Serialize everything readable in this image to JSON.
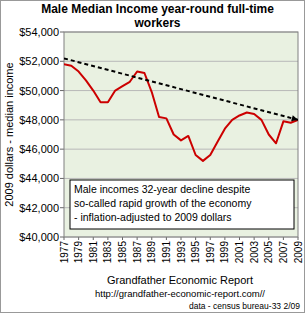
{
  "chart_data": {
    "type": "line",
    "title": "Male Median Income year-round full-time workers",
    "y_label": "2009 dollars - median income",
    "x": [
      1977,
      1978,
      1979,
      1980,
      1981,
      1982,
      1983,
      1984,
      1985,
      1986,
      1987,
      1988,
      1989,
      1990,
      1991,
      1992,
      1993,
      1994,
      1995,
      1996,
      1997,
      1998,
      1999,
      2000,
      2001,
      2002,
      2003,
      2004,
      2005,
      2006,
      2007,
      2008,
      2009
    ],
    "series": [
      {
        "color": "#cc0000",
        "values": [
          51800,
          51700,
          51300,
          50700,
          50000,
          49200,
          49200,
          50000,
          50300,
          50600,
          51300,
          51200,
          49900,
          48200,
          48100,
          47000,
          46600,
          46900,
          45600,
          45200,
          45600,
          46500,
          47400,
          48000,
          48300,
          48500,
          48400,
          48000,
          47000,
          46400,
          47900,
          47800,
          48000
        ]
      }
    ],
    "trend": {
      "x": [
        1977,
        2009
      ],
      "values": [
        52200,
        48000
      ],
      "color": "#000000",
      "line_style": "dashed"
    },
    "xlim": [
      1977,
      2009
    ],
    "xticks": [
      1977,
      1979,
      1981,
      1983,
      1985,
      1987,
      1989,
      1991,
      1993,
      1995,
      1997,
      1999,
      2001,
      2003,
      2005,
      2007,
      2009
    ],
    "ylim": [
      40000,
      54000
    ],
    "yticks": [
      {
        "value": 40000,
        "label": "$40,000"
      },
      {
        "value": 42000,
        "label": "$42,000"
      },
      {
        "value": 44000,
        "label": "$44,000"
      },
      {
        "value": 46000,
        "label": "$46,000"
      },
      {
        "value": 48000,
        "label": "$48,000"
      },
      {
        "value": 50000,
        "label": "$50,000"
      },
      {
        "value": 52000,
        "label": "$52,000"
      },
      {
        "value": 54000,
        "label": "$54,000"
      }
    ],
    "grid": true,
    "annotation": [
      "Male incomes 32-year decline despite",
      "so-called rapid growth of the economy",
      "- inflation-adjusted to 2009 dollars"
    ],
    "footer": [
      "Grandfather Economic Report",
      "http://grandfather-economic-report.com//",
      "data - census bureau-33 2/09"
    ]
  }
}
